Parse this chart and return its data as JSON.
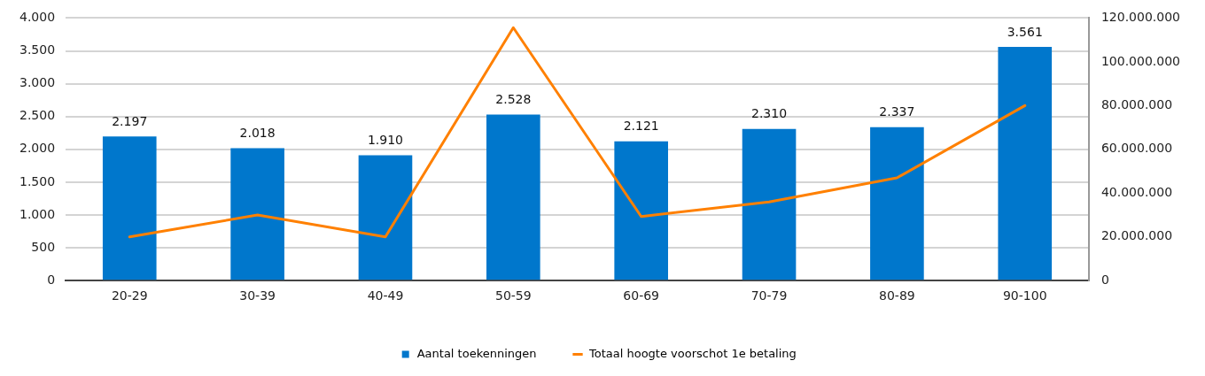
{
  "chart_data": {
    "type": "bar",
    "categories": [
      "20-29",
      "30-39",
      "40-49",
      "50-59",
      "60-69",
      "70-79",
      "80-89",
      "90-100"
    ],
    "series": [
      {
        "name": "Aantal toekenningen",
        "color": "#0077cc",
        "values": [
          2197,
          2018,
          1910,
          2528,
          2121,
          2310,
          2337,
          3561
        ],
        "value_labels": [
          "2.197",
          "2.018",
          "1.910",
          "2.528",
          "2.121",
          "2.310",
          "2.337",
          "3.561"
        ]
      },
      {
        "name": "Totaal hoogte voorschot 1e betaling",
        "type": "line",
        "axis": "y2",
        "color": "#ff8000",
        "values": [
          20000000,
          30000000,
          20000000,
          115600000,
          29300000,
          36000000,
          47000000,
          80000000
        ]
      }
    ],
    "ylim": [
      0,
      4000
    ],
    "yticks": [
      {
        "value": 0,
        "label": "0"
      },
      {
        "value": 500,
        "label": "500"
      },
      {
        "value": 1000,
        "label": "1.000"
      },
      {
        "value": 1500,
        "label": "1.500"
      },
      {
        "value": 2000,
        "label": "2.000"
      },
      {
        "value": 2500,
        "label": "2.500"
      },
      {
        "value": 3000,
        "label": "3.000"
      },
      {
        "value": 3500,
        "label": "3.500"
      },
      {
        "value": 4000,
        "label": "4.000"
      }
    ],
    "y2lim": [
      0,
      120000000
    ],
    "y2ticks": [
      {
        "value": 0,
        "label": "0"
      },
      {
        "value": 20000000,
        "label": "20.000.000"
      },
      {
        "value": 40000000,
        "label": "40.000.000"
      },
      {
        "value": 60000000,
        "label": "60.000.000"
      },
      {
        "value": 80000000,
        "label": "80.000.000"
      },
      {
        "value": 100000000,
        "label": "100.000.000"
      },
      {
        "value": 120000000,
        "label": "120.000.000"
      }
    ],
    "grid": "y",
    "legend": "bottom",
    "marker": "none",
    "line_style": "solid"
  }
}
